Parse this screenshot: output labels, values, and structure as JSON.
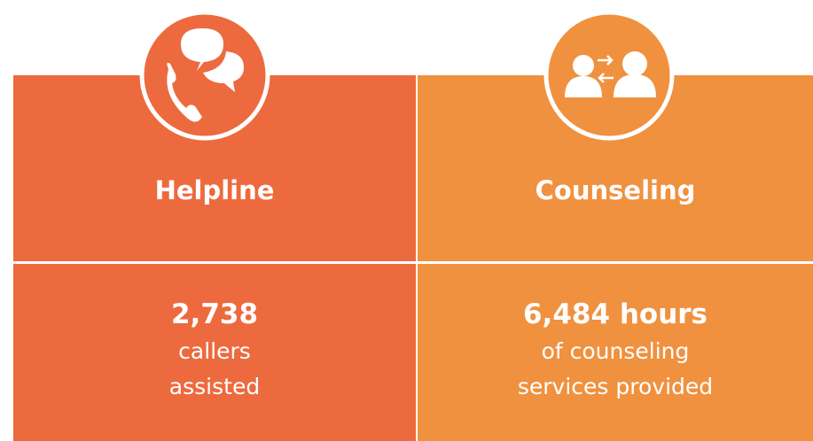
{
  "panels": [
    {
      "title": "Helpline",
      "stat": "2,738",
      "lines": [
        "callers",
        "assisted"
      ]
    },
    {
      "title": "Counseling",
      "stat": "6,484 hours",
      "lines": [
        "of counseling",
        "services provided"
      ]
    }
  ]
}
